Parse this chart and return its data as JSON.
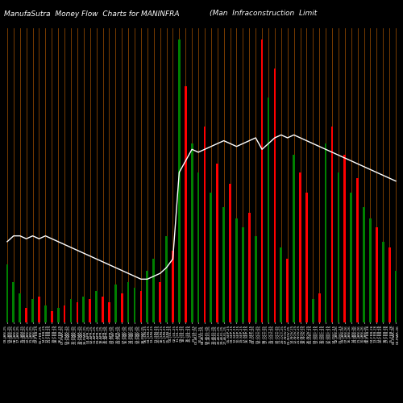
{
  "title_left": "ManufaSutra  Money Flow  Charts for MANINFRA",
  "title_right": "(Man  Infraconstruction  Limit",
  "bg_color": "#000000",
  "bar_colors": [
    "green",
    "green",
    "green",
    "red",
    "green",
    "red",
    "green",
    "red",
    "green",
    "red",
    "green",
    "red",
    "green",
    "red",
    "green",
    "red",
    "red",
    "green",
    "red",
    "green",
    "green",
    "red",
    "green",
    "green",
    "red",
    "green",
    "red",
    "green",
    "red",
    "green",
    "green",
    "red",
    "green",
    "red",
    "green",
    "red",
    "green",
    "green",
    "red",
    "green",
    "red",
    "green",
    "red",
    "green",
    "red",
    "green",
    "red",
    "red",
    "green",
    "red",
    "green",
    "red",
    "green",
    "red",
    "green",
    "red",
    "green",
    "green",
    "red",
    "green",
    "red",
    "green"
  ],
  "bar_heights": [
    20,
    14,
    10,
    5,
    8,
    9,
    6,
    4,
    5,
    6,
    8,
    7,
    9,
    8,
    11,
    9,
    7,
    13,
    10,
    14,
    12,
    11,
    18,
    22,
    14,
    30,
    25,
    98,
    82,
    62,
    52,
    68,
    45,
    55,
    40,
    48,
    36,
    33,
    38,
    30,
    98,
    78,
    88,
    26,
    22,
    58,
    52,
    45,
    8,
    10,
    62,
    68,
    52,
    58,
    45,
    50,
    40,
    36,
    33,
    28,
    26,
    18
  ],
  "line_values": [
    28,
    30,
    30,
    29,
    30,
    29,
    30,
    29,
    28,
    27,
    26,
    25,
    24,
    23,
    22,
    21,
    20,
    19,
    18,
    17,
    16,
    15,
    15,
    16,
    17,
    19,
    22,
    52,
    56,
    60,
    59,
    60,
    61,
    62,
    63,
    62,
    61,
    62,
    63,
    64,
    60,
    62,
    64,
    65,
    64,
    65,
    64,
    63,
    62,
    61,
    60,
    59,
    58,
    57,
    56,
    55,
    54,
    53,
    52,
    51,
    50,
    49
  ],
  "n_bars": 62,
  "line_color": "#ffffff",
  "orange_line_color": "#8B4500",
  "text_color": "#ffffff",
  "title_fontsize": 6.5,
  "tick_fontsize": 3.2
}
